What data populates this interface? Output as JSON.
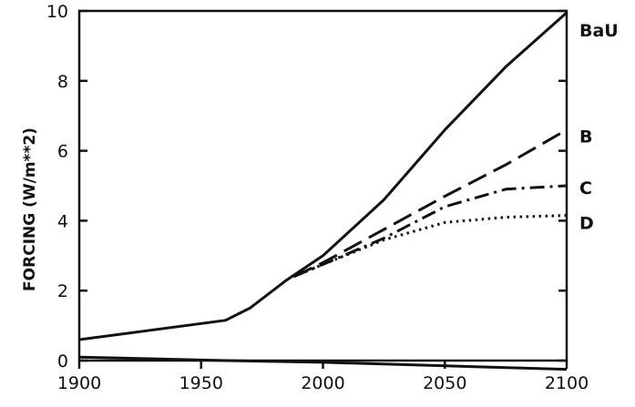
{
  "chart_data": {
    "type": "line",
    "title": "",
    "xlabel": "",
    "ylabel": "FORCING  (W/m**2)",
    "xlim": [
      1900,
      2100
    ],
    "ylim": [
      0,
      10
    ],
    "grid": false,
    "x_ticks": [
      "1900",
      "1950",
      "2000",
      "2050",
      "2100"
    ],
    "y_ticks": [
      "0",
      "2",
      "4",
      "6",
      "8",
      "10"
    ],
    "series": [
      {
        "name": "BaU",
        "style": "solid",
        "x": [
          1900,
          1960,
          1970,
          1985,
          2000,
          2025,
          2050,
          2075,
          2100
        ],
        "y": [
          0.6,
          1.15,
          1.5,
          2.3,
          3.0,
          4.6,
          6.6,
          8.4,
          9.95
        ]
      },
      {
        "name": "B",
        "style": "dashed",
        "x": [
          1988,
          2000,
          2025,
          2050,
          2075,
          2100
        ],
        "y": [
          2.4,
          2.8,
          3.75,
          4.7,
          5.6,
          6.6
        ]
      },
      {
        "name": "C",
        "style": "dashdot",
        "x": [
          1988,
          2000,
          2025,
          2050,
          2075,
          2100
        ],
        "y": [
          2.4,
          2.75,
          3.5,
          4.4,
          4.9,
          5.0
        ]
      },
      {
        "name": "D",
        "style": "dotted",
        "x": [
          1988,
          2000,
          2025,
          2050,
          2075,
          2100
        ],
        "y": [
          2.4,
          2.75,
          3.45,
          3.95,
          4.1,
          4.15
        ]
      },
      {
        "name": "",
        "style": "solid",
        "x": [
          1900,
          1960,
          2000,
          2050,
          2100
        ],
        "y": [
          0.1,
          0.0,
          -0.05,
          -0.15,
          -0.25
        ]
      }
    ]
  }
}
